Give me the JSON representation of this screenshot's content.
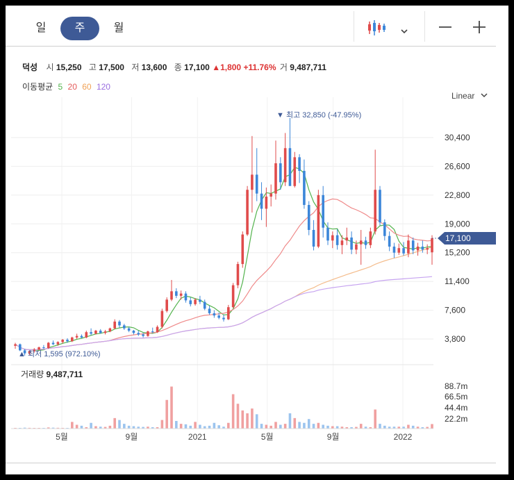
{
  "tabs": [
    {
      "label": "일",
      "active": false
    },
    {
      "label": "주",
      "active": true
    },
    {
      "label": "월",
      "active": false
    }
  ],
  "toolbar": {
    "chart_type_icon": "candlestick-icon",
    "dropdown_icon": "chevron-down-icon",
    "zoom_out": "—",
    "zoom_in": "+"
  },
  "ohlc": {
    "name": "덕성",
    "open_label": "시",
    "open": "15,250",
    "high_label": "고",
    "high": "17,500",
    "low_label": "저",
    "low": "13,600",
    "close_label": "종",
    "close": "17,100",
    "change_arrow": "▲",
    "change": "1,800",
    "change_pct": "+11.76%",
    "volume_label": "거",
    "volume": "9,487,711"
  },
  "ma_legend": {
    "title": "이동평균",
    "items": [
      {
        "label": "5",
        "color": "#53b34d"
      },
      {
        "label": "20",
        "color": "#e45a5a"
      },
      {
        "label": "60",
        "color": "#f0a155"
      },
      {
        "label": "120",
        "color": "#9a6ee0"
      }
    ]
  },
  "scale_toggle": "Linear",
  "chart_data": {
    "type": "candlestick",
    "y_ticks": [
      "30,400",
      "26,600",
      "22,800",
      "19,000",
      "15,200",
      "11,400",
      "7,600",
      "3,800"
    ],
    "ylim": [
      0,
      33000
    ],
    "x_tick_labels": [
      "5월",
      "9월",
      "2021",
      "5월",
      "9월",
      "2022"
    ],
    "current_price_tag": "17,100",
    "max_annotation": "▼ 최고 32,850 (-47.95%)",
    "min_annotation": "▲ 최저 1,595 (972.10%)",
    "colors": {
      "up": "#e04b4b",
      "down": "#3c86d9"
    },
    "candles": [
      [
        2.9,
        3.3,
        2.5,
        3.1
      ],
      [
        3.1,
        3.2,
        2.2,
        2.3
      ],
      [
        2.3,
        2.5,
        1.6,
        1.9
      ],
      [
        1.9,
        2.3,
        1.7,
        2.2
      ],
      [
        2.2,
        2.6,
        2.0,
        2.4
      ],
      [
        2.4,
        2.8,
        2.3,
        2.7
      ],
      [
        2.7,
        3.0,
        2.5,
        2.6
      ],
      [
        2.6,
        3.4,
        2.5,
        3.3
      ],
      [
        3.3,
        3.6,
        3.0,
        3.1
      ],
      [
        3.1,
        3.5,
        2.9,
        3.4
      ],
      [
        3.4,
        3.8,
        3.2,
        3.7
      ],
      [
        3.7,
        3.9,
        3.3,
        3.5
      ],
      [
        3.5,
        4.1,
        3.4,
        4.0
      ],
      [
        4.0,
        4.5,
        3.8,
        4.2
      ],
      [
        4.2,
        4.4,
        3.9,
        4.0
      ],
      [
        4.0,
        4.9,
        3.9,
        4.7
      ],
      [
        4.7,
        5.2,
        4.3,
        4.5
      ],
      [
        4.5,
        5.0,
        4.4,
        4.9
      ],
      [
        4.9,
        5.1,
        4.5,
        4.6
      ],
      [
        4.6,
        5.0,
        4.4,
        4.8
      ],
      [
        4.8,
        5.3,
        4.7,
        5.2
      ],
      [
        5.2,
        6.4,
        5.1,
        6.1
      ],
      [
        6.1,
        6.3,
        5.3,
        5.6
      ],
      [
        5.6,
        5.8,
        5.0,
        5.2
      ],
      [
        5.2,
        5.4,
        4.7,
        4.9
      ],
      [
        4.9,
        5.0,
        4.4,
        4.6
      ],
      [
        4.6,
        4.9,
        4.2,
        4.4
      ],
      [
        4.4,
        4.6,
        4.0,
        4.2
      ],
      [
        4.2,
        4.9,
        4.1,
        4.8
      ],
      [
        4.8,
        5.3,
        4.6,
        4.7
      ],
      [
        4.7,
        5.6,
        4.6,
        5.4
      ],
      [
        5.4,
        7.8,
        5.2,
        7.5
      ],
      [
        7.5,
        9.3,
        7.3,
        9.0
      ],
      [
        9.0,
        11.6,
        8.8,
        10.1
      ],
      [
        10.1,
        10.5,
        9.2,
        9.5
      ],
      [
        9.5,
        10.2,
        9.0,
        9.8
      ],
      [
        9.8,
        10.1,
        8.6,
        8.9
      ],
      [
        8.9,
        9.3,
        8.1,
        8.4
      ],
      [
        8.4,
        9.2,
        8.2,
        9.0
      ],
      [
        9.0,
        9.5,
        8.4,
        8.7
      ],
      [
        8.7,
        9.0,
        7.6,
        7.8
      ],
      [
        7.8,
        8.2,
        7.0,
        7.2
      ],
      [
        7.2,
        7.6,
        6.6,
        6.9
      ],
      [
        6.9,
        7.3,
        6.4,
        6.6
      ],
      [
        6.6,
        7.0,
        6.1,
        6.4
      ],
      [
        6.4,
        8.3,
        6.3,
        8.0
      ],
      [
        8.0,
        11.2,
        7.9,
        10.9
      ],
      [
        10.9,
        14.0,
        10.5,
        13.7
      ],
      [
        13.7,
        18.0,
        13.2,
        17.6
      ],
      [
        17.6,
        24.0,
        17.4,
        23.5
      ],
      [
        23.5,
        30.6,
        20.5,
        25.5
      ],
      [
        25.5,
        29.0,
        22.0,
        23.0
      ],
      [
        23.0,
        24.5,
        19.5,
        21.0
      ],
      [
        21.0,
        23.8,
        18.6,
        22.6
      ],
      [
        22.6,
        24.2,
        21.3,
        23.0
      ],
      [
        23.0,
        30.0,
        22.2,
        27.0
      ],
      [
        27.0,
        27.8,
        23.5,
        24.5
      ],
      [
        24.5,
        31.0,
        24.0,
        29.0
      ],
      [
        29.0,
        33.0,
        27.5,
        24.0
      ],
      [
        24.0,
        28.5,
        23.8,
        27.8
      ],
      [
        27.8,
        28.2,
        24.4,
        26.0
      ],
      [
        26.0,
        27.5,
        21.0,
        21.5
      ],
      [
        21.5,
        22.0,
        17.5,
        18.2
      ],
      [
        18.2,
        19.5,
        15.5,
        16.0
      ],
      [
        16.0,
        23.5,
        15.8,
        22.8
      ],
      [
        22.8,
        24.0,
        17.2,
        18.5
      ],
      [
        18.5,
        19.2,
        16.2,
        16.8
      ],
      [
        16.8,
        18.0,
        15.8,
        17.5
      ],
      [
        17.5,
        18.3,
        15.6,
        16.2
      ],
      [
        16.2,
        17.5,
        15.0,
        16.8
      ],
      [
        16.8,
        18.5,
        16.2,
        17.2
      ],
      [
        17.2,
        18.0,
        15.0,
        15.6
      ],
      [
        15.6,
        16.8,
        15.0,
        16.3
      ],
      [
        16.3,
        18.2,
        13.6,
        16.8
      ],
      [
        16.8,
        17.3,
        15.7,
        16.2
      ],
      [
        16.2,
        18.5,
        15.8,
        18.0
      ],
      [
        18.0,
        28.8,
        17.6,
        23.5
      ],
      [
        23.5,
        24.0,
        18.8,
        19.2
      ],
      [
        19.2,
        19.6,
        16.8,
        17.4
      ],
      [
        17.4,
        18.0,
        15.4,
        16.0
      ],
      [
        16.0,
        16.5,
        14.5,
        15.2
      ],
      [
        15.2,
        16.4,
        14.9,
        15.8
      ],
      [
        15.8,
        16.6,
        14.8,
        15.1
      ],
      [
        15.1,
        17.6,
        14.6,
        16.8
      ],
      [
        16.8,
        17.2,
        15.0,
        15.5
      ],
      [
        15.5,
        16.5,
        14.8,
        16.0
      ],
      [
        16.0,
        16.8,
        15.2,
        15.6
      ],
      [
        15.6,
        16.3,
        15.0,
        15.8
      ],
      [
        15.25,
        17.5,
        13.6,
        17.1
      ]
    ],
    "volume_ticks": [
      "88.7m",
      "66.5m",
      "44.4m",
      "22.2m"
    ],
    "volume_max_m": 88.7,
    "volumes_m": [
      1.5,
      1.2,
      2.0,
      1.6,
      1.4,
      1.3,
      1.1,
      2.4,
      2.0,
      1.7,
      1.5,
      1.4,
      14.0,
      8.0,
      6.0,
      3.0,
      12.0,
      5.0,
      4.0,
      3.5,
      6.0,
      22.0,
      18.0,
      10.0,
      6.0,
      5.0,
      4.0,
      3.5,
      4.0,
      3.0,
      3.0,
      18.0,
      60.0,
      88.0,
      16.0,
      10.0,
      9.0,
      6.0,
      14.0,
      8.0,
      5.0,
      6.0,
      12.0,
      7.0,
      4.0,
      12.0,
      72.0,
      52.0,
      38.0,
      32.0,
      42.0,
      30.0,
      10.0,
      8.0,
      6.0,
      14.0,
      8.0,
      10.0,
      32.0,
      22.0,
      14.0,
      12.0,
      20.0,
      10.0,
      12.0,
      8.0,
      6.0,
      5.0,
      5.0,
      4.0,
      3.0,
      3.0,
      3.5,
      10.0,
      4.0,
      3.0,
      40.0,
      10.0,
      6.0,
      4.0,
      4.0,
      4.0,
      4.0,
      8.0,
      6.0,
      4.0,
      3.0,
      3.5,
      9.5
    ],
    "volume_label": "거래량",
    "volume_value": "9,487,711"
  }
}
